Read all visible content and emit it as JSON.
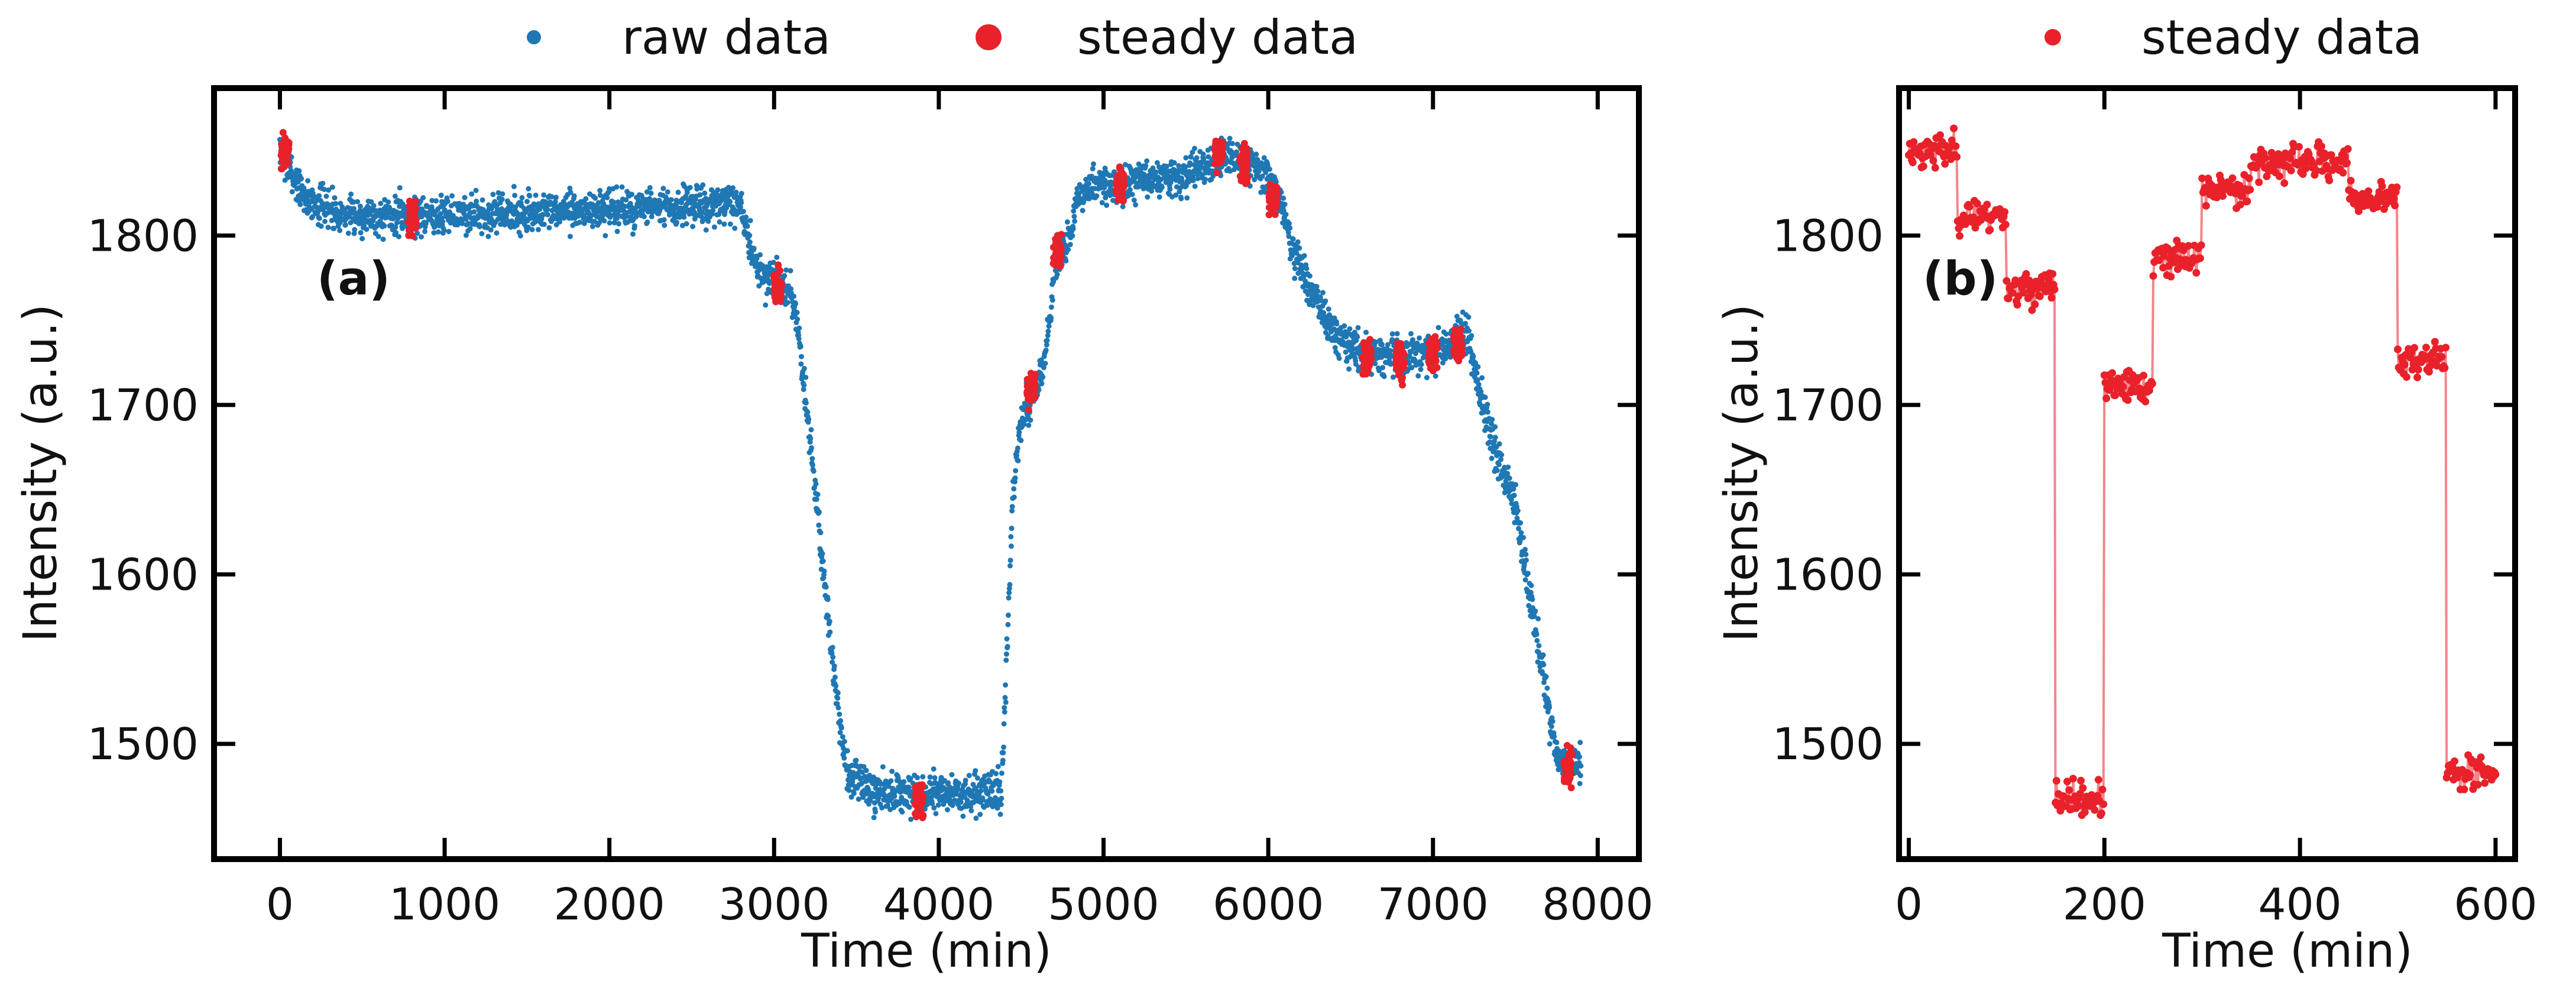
{
  "chart_data": [
    {
      "id": "a",
      "type": "scatter",
      "panel_label": "(a)",
      "xlabel": "Time (min)",
      "ylabel": "Intensity (a.u.)",
      "xlim": [
        -400,
        8250
      ],
      "ylim": [
        1432,
        1887
      ],
      "xticks": [
        0,
        1000,
        2000,
        3000,
        4000,
        5000,
        6000,
        7000,
        8000
      ],
      "xtick_labels": [
        "0",
        "1000",
        "2000",
        "3000",
        "4000",
        "5000",
        "6000",
        "7000",
        "8000"
      ],
      "yticks": [
        1500,
        1600,
        1700,
        1800
      ],
      "ytick_labels": [
        "1500",
        "1600",
        "1700",
        "1800"
      ],
      "legend": {
        "placement": "top, outside above axes",
        "entries": [
          {
            "label": "raw data",
            "color": "#1f77b4",
            "marker": "small dot"
          },
          {
            "label": "steady data",
            "color": "#e8212a",
            "marker": "large dot"
          }
        ]
      },
      "series": [
        {
          "name": "raw data",
          "color": "#1f77b4",
          "trend": [
            [
              0,
              1850
            ],
            [
              150,
              1822
            ],
            [
              400,
              1812
            ],
            [
              1000,
              1812
            ],
            [
              2000,
              1815
            ],
            [
              2800,
              1818
            ],
            [
              2860,
              1790
            ],
            [
              2950,
              1775
            ],
            [
              3100,
              1768
            ],
            [
              3150,
              1740
            ],
            [
              3250,
              1650
            ],
            [
              3300,
              1600
            ],
            [
              3400,
              1510
            ],
            [
              3450,
              1480
            ],
            [
              3600,
              1472
            ],
            [
              4000,
              1470
            ],
            [
              4380,
              1472
            ],
            [
              4400,
              1520
            ],
            [
              4450,
              1650
            ],
            [
              4500,
              1690
            ],
            [
              4600,
              1710
            ],
            [
              4650,
              1730
            ],
            [
              4700,
              1780
            ],
            [
              4800,
              1800
            ],
            [
              4850,
              1825
            ],
            [
              5000,
              1830
            ],
            [
              5500,
              1835
            ],
            [
              5700,
              1845
            ],
            [
              5900,
              1842
            ],
            [
              6000,
              1835
            ],
            [
              6100,
              1815
            ],
            [
              6150,
              1790
            ],
            [
              6300,
              1760
            ],
            [
              6400,
              1742
            ],
            [
              6600,
              1730
            ],
            [
              6800,
              1728
            ],
            [
              7100,
              1735
            ],
            [
              7200,
              1745
            ],
            [
              7300,
              1700
            ],
            [
              7400,
              1665
            ],
            [
              7500,
              1640
            ],
            [
              7600,
              1580
            ],
            [
              7700,
              1520
            ],
            [
              7750,
              1492
            ],
            [
              7900,
              1487
            ]
          ],
          "noise_amplitude": 8
        },
        {
          "name": "steady data",
          "color": "#e8212a",
          "clusters": [
            {
              "x": 30,
              "y": 1850
            },
            {
              "x": 800,
              "y": 1811
            },
            {
              "x": 3020,
              "y": 1768
            },
            {
              "x": 3880,
              "y": 1467
            },
            {
              "x": 4560,
              "y": 1710
            },
            {
              "x": 4720,
              "y": 1789
            },
            {
              "x": 5100,
              "y": 1830
            },
            {
              "x": 5700,
              "y": 1848
            },
            {
              "x": 5850,
              "y": 1842
            },
            {
              "x": 6030,
              "y": 1822
            },
            {
              "x": 6600,
              "y": 1728
            },
            {
              "x": 6800,
              "y": 1725
            },
            {
              "x": 7000,
              "y": 1730
            },
            {
              "x": 7150,
              "y": 1736
            },
            {
              "x": 7820,
              "y": 1487
            }
          ]
        }
      ]
    },
    {
      "id": "b",
      "type": "line",
      "panel_label": "(b)",
      "xlabel": "Time (min)",
      "ylabel": "Intensity (a.u.)",
      "xlim": [
        -10,
        620
      ],
      "ylim": [
        1432,
        1887
      ],
      "xticks": [
        0,
        200,
        400,
        600
      ],
      "xtick_labels": [
        "0",
        "200",
        "400",
        "600"
      ],
      "yticks": [
        1500,
        1600,
        1700,
        1800
      ],
      "ytick_labels": [
        "1500",
        "1600",
        "1700",
        "1800"
      ],
      "legend": {
        "placement": "top, outside above axes",
        "entries": [
          {
            "label": "steady data",
            "color": "#e8212a",
            "marker": "dot"
          }
        ]
      },
      "series": [
        {
          "name": "steady data",
          "color": "#e8212a",
          "segments": [
            {
              "x_start": 0,
              "x_end": 50,
              "y": 1850
            },
            {
              "x_start": 50,
              "x_end": 100,
              "y": 1812
            },
            {
              "x_start": 100,
              "x_end": 150,
              "y": 1769
            },
            {
              "x_start": 150,
              "x_end": 200,
              "y": 1467
            },
            {
              "x_start": 200,
              "x_end": 250,
              "y": 1710
            },
            {
              "x_start": 250,
              "x_end": 300,
              "y": 1787
            },
            {
              "x_start": 300,
              "x_end": 350,
              "y": 1828
            },
            {
              "x_start": 350,
              "x_end": 450,
              "y": 1843
            },
            {
              "x_start": 450,
              "x_end": 500,
              "y": 1822
            },
            {
              "x_start": 500,
              "x_end": 550,
              "y": 1727
            },
            {
              "x_start": 550,
              "x_end": 600,
              "y": 1483
            }
          ],
          "noise_amplitude": 7
        }
      ]
    }
  ]
}
